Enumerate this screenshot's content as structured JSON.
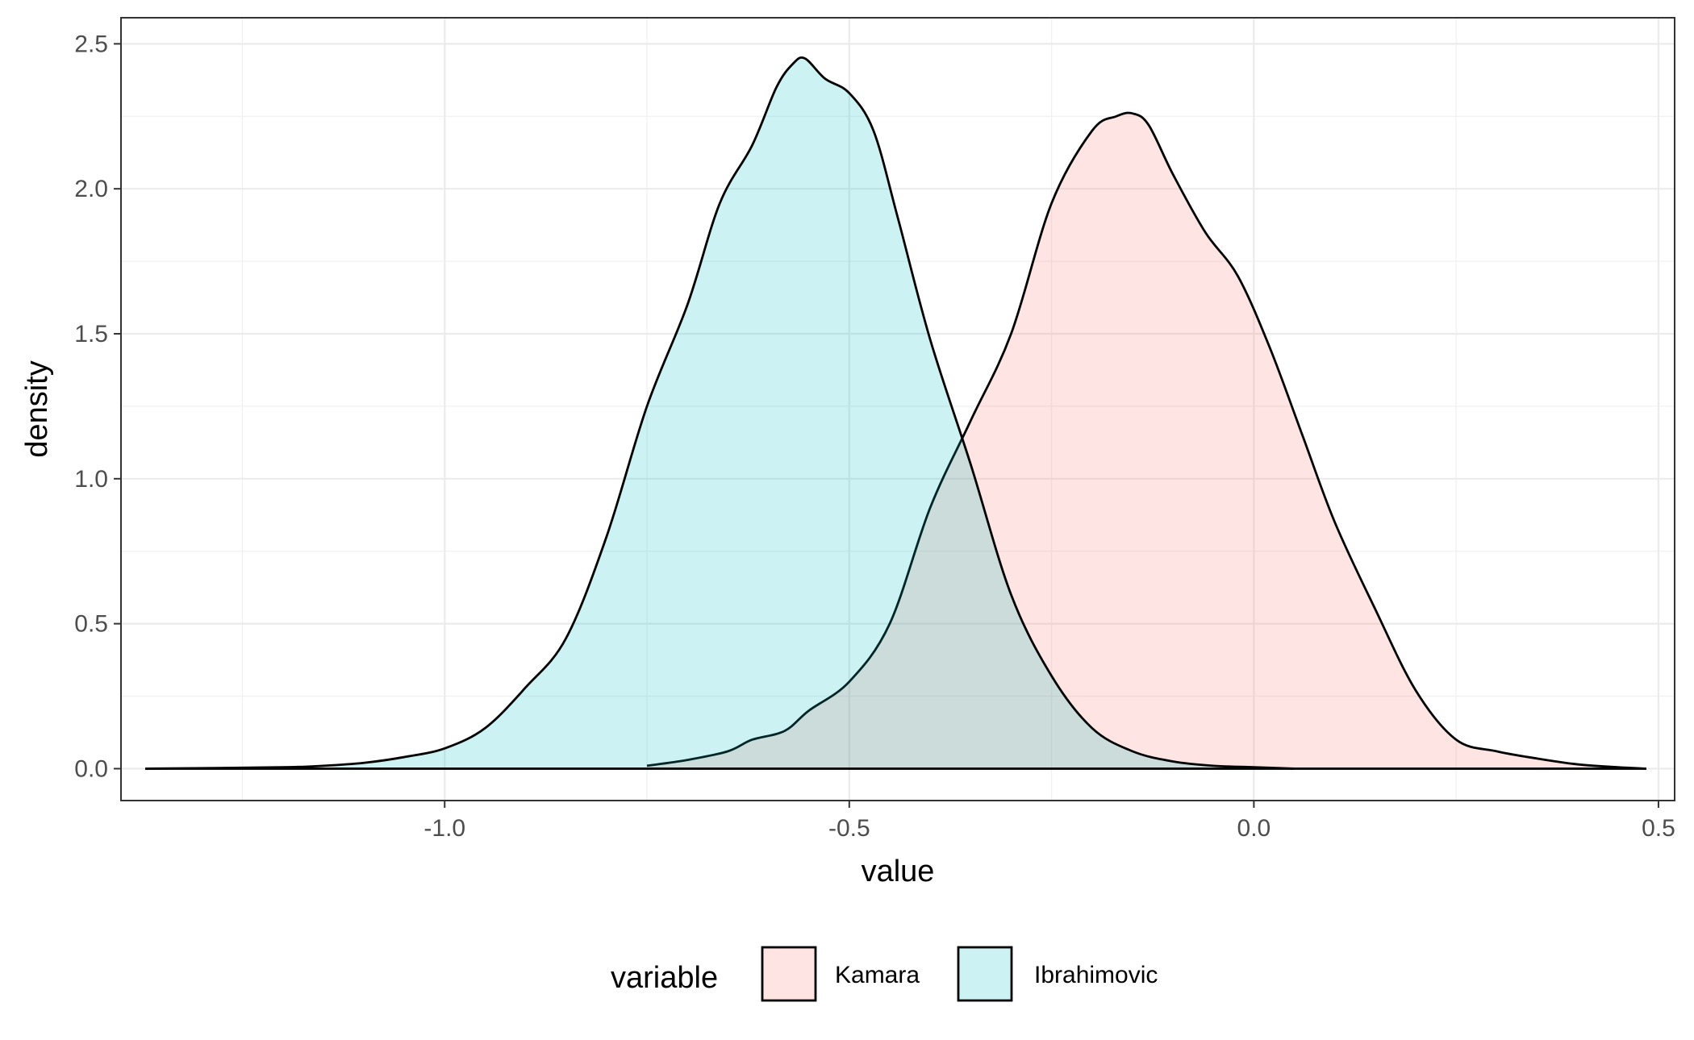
{
  "chart_data": {
    "type": "area",
    "subtype": "density",
    "xlabel": "value",
    "ylabel": "density",
    "xlim": [
      -1.4,
      0.52
    ],
    "ylim": [
      -0.11,
      2.59
    ],
    "x_ticks": [
      -1.0,
      -0.5,
      0.0,
      0.5
    ],
    "x_tick_labels": [
      "-1.0",
      "-0.5",
      "0.0",
      "0.5"
    ],
    "y_ticks": [
      0.0,
      0.5,
      1.0,
      1.5,
      2.0,
      2.5
    ],
    "y_tick_labels": [
      "0.0",
      "0.5",
      "1.0",
      "1.5",
      "2.0",
      "2.5"
    ],
    "grid": true,
    "legend": {
      "title": "variable",
      "position": "bottom"
    },
    "series": [
      {
        "name": "Kamara",
        "fill": "#F8766D",
        "fill_opacity": 0.2,
        "x": [
          -0.75,
          -0.7,
          -0.65,
          -0.62,
          -0.58,
          -0.55,
          -0.5,
          -0.45,
          -0.4,
          -0.35,
          -0.3,
          -0.25,
          -0.2,
          -0.17,
          -0.15,
          -0.13,
          -0.1,
          -0.06,
          -0.02,
          0.02,
          0.06,
          0.1,
          0.15,
          0.2,
          0.25,
          0.3,
          0.35,
          0.4,
          0.45,
          0.485
        ],
        "y": [
          0.01,
          0.03,
          0.06,
          0.1,
          0.13,
          0.2,
          0.3,
          0.5,
          0.9,
          1.2,
          1.5,
          1.95,
          2.2,
          2.25,
          2.26,
          2.22,
          2.05,
          1.85,
          1.7,
          1.45,
          1.15,
          0.85,
          0.55,
          0.27,
          0.1,
          0.06,
          0.035,
          0.015,
          0.005,
          0.0
        ]
      },
      {
        "name": "Ibrahimovic",
        "fill": "#00BFC4",
        "fill_opacity": 0.2,
        "x": [
          -1.37,
          -1.2,
          -1.15,
          -1.1,
          -1.05,
          -1.0,
          -0.95,
          -0.9,
          -0.85,
          -0.8,
          -0.75,
          -0.7,
          -0.66,
          -0.62,
          -0.59,
          -0.57,
          -0.555,
          -0.53,
          -0.5,
          -0.47,
          -0.44,
          -0.4,
          -0.35,
          -0.3,
          -0.25,
          -0.2,
          -0.15,
          -0.1,
          -0.05,
          0.0,
          0.05
        ],
        "y": [
          0.0,
          0.005,
          0.01,
          0.02,
          0.04,
          0.07,
          0.14,
          0.28,
          0.45,
          0.8,
          1.25,
          1.6,
          1.95,
          2.15,
          2.35,
          2.43,
          2.45,
          2.38,
          2.33,
          2.2,
          1.9,
          1.48,
          1.05,
          0.6,
          0.32,
          0.14,
          0.06,
          0.025,
          0.01,
          0.005,
          0.0
        ]
      }
    ]
  }
}
